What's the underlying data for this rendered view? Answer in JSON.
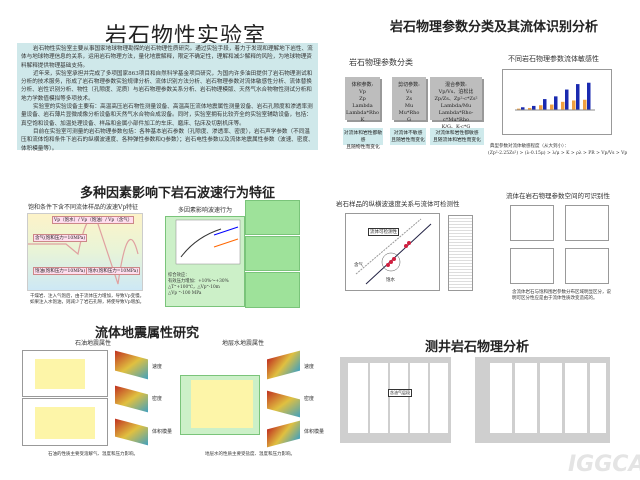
{
  "title": "岩石物性实验室",
  "intro": [
    "岩石物性实验室主要从事国家地球物理勘探的岩石物理性质研究。通过实验手段，着力于发现和理解地下岩性、流体与地球物理信息的关系，运用岩石物理方法，量化地震解释，限定不确定性，理解和减少解释的风险，为地球物理资料解释提供物理基础支持。",
    "近年来，实验室承担并完成了多项国家863项目和自然科学基金项目研究，为国内许多油田提供了岩石物理测试和分析的技术服务，形成了岩石物理参数实验规律分析、流体识别方法分析、岩石物理参数对流体敏感性分析、流体替换分析、岩性识别分析、物性（孔隙度、泥质）与岩石物理参数关系分析、岩石物理模版、天然气水合物物性测试分析和地力学数值模拟等多项技术。",
    "实验室的实验设备主要有：高温高压岩石物性测量设备、高温高压流体地震属性测量设备、岩石孔隙度和渗透率测量设备、岩石薄片显微成像分析设备和天然气水合物合成设备。同时，实验室拥有比较齐全的实验室辅助设备，包括：真空饱和设备、加温处理设备、样品和金属小部件加工的车床、磨床、钻床及切割机床等。",
    "目前在实验室可测量的岩石物理参数包括：各种基本岩石参数（孔隙度、渗透率、密度），岩石声学参数（不同温压和流体饱和条件下岩石的纵横波速度、各种弹性参数和Q参数）；岩石电性参数以及流体地震属性参数（波速、密度、体积模量等）。"
  ],
  "section1": {
    "title": "岩石物理参数分类及其流体识别分析",
    "classify_title": "岩石物理参数分类",
    "groups": [
      {
        "params": "体积参数:\nVp\nZp\nLambda\nLambda*Rho\nK",
        "note": "对流体和岩性都敏感\n且随物性而变化"
      },
      {
        "params": "剪切参数:\nVs\nZs\nMu\nMu*Rho\nG",
        "note": "对流体不敏感\n且随岩性而变化"
      },
      {
        "params": "混合参数:\nVp/Vs、泊松比\nZp/Zs、Zp²-c*Zs²\nLambda/Mu\nLambda*Rho-c*Mu*Rho\nK/G、K-c*G",
        "note": "对流体和岩性都敏感\n且随流体和岩性而变化"
      }
    ],
    "sensitivity_title": "不同岩石物理参数流体敏感性",
    "sensitivity_chart": {
      "orange": [
        0.1,
        0.15,
        0.35,
        0.4,
        0.6,
        0.7,
        0.75
      ],
      "blue": [
        0.2,
        0.3,
        0.8,
        1.0,
        1.5,
        1.9,
        2.0
      ],
      "colors": {
        "orange": "#f0a040",
        "blue": "#1a2ab0"
      }
    },
    "formula_label": "典型参数对流体敏感程度（从大到小）：",
    "formula": "(Zp²-2.25Zs²) > (λ-0.15μ) > λ/μ > K > ρλ > PR > Vp/Vs > Vp"
  },
  "section2": {
    "title": "多种因素影响下岩石波速行为特征",
    "left_title": "饱和条件下含不同流体样品的波速Vp特征",
    "legend": "Vp（饱水）/ Vp（饱油）/ Vp（含气）",
    "labels": [
      "含气(饱和压力=10MPa)",
      "饱油(饱和压力=10MPa)",
      "饱水(饱和压力=10MPa)"
    ],
    "caption": "干燥岩、注入气饱后，由于流体压力增加，导致Vp变慢。如果注入水饱油，则减少了岩石孔隙，将使导致Vp增加。",
    "mid_title": "多因素影响波速行为",
    "mid_notes": [
      "综合效应：",
      "有效压力增加：+10%～+30%",
      "△T⁼+100℃，△Vp⁼-10m",
      "△Vp ⁼-100 MPa"
    ]
  },
  "section3": {
    "title": "岩石样品的纵横波速度关系与流体可检测性",
    "box_label": "流体可检测性",
    "labels": [
      "含气",
      "饱水"
    ],
    "right_title": "流体在岩石物理参数空间的可识别性",
    "caption": "含流体岩石与饱和围岩参数分布区域明显区分，说明可区分性应是由于流体性质改变造成的。"
  },
  "section4": {
    "title": "流体地震属性研究",
    "oil_title": "石油地震属性",
    "water_title": "地层水地震属性",
    "surface_labels": [
      "速度",
      "密度",
      "体积模量"
    ],
    "oil_caption": "石油的性质主要受溶解气、温度和压力影响。",
    "water_caption": "地层水的性质主要受盐度、温度和压力影响。"
  },
  "section5": {
    "title": "测井岩石物理分析",
    "annotation": "含油气层段"
  },
  "watermark": "IGGCAS"
}
